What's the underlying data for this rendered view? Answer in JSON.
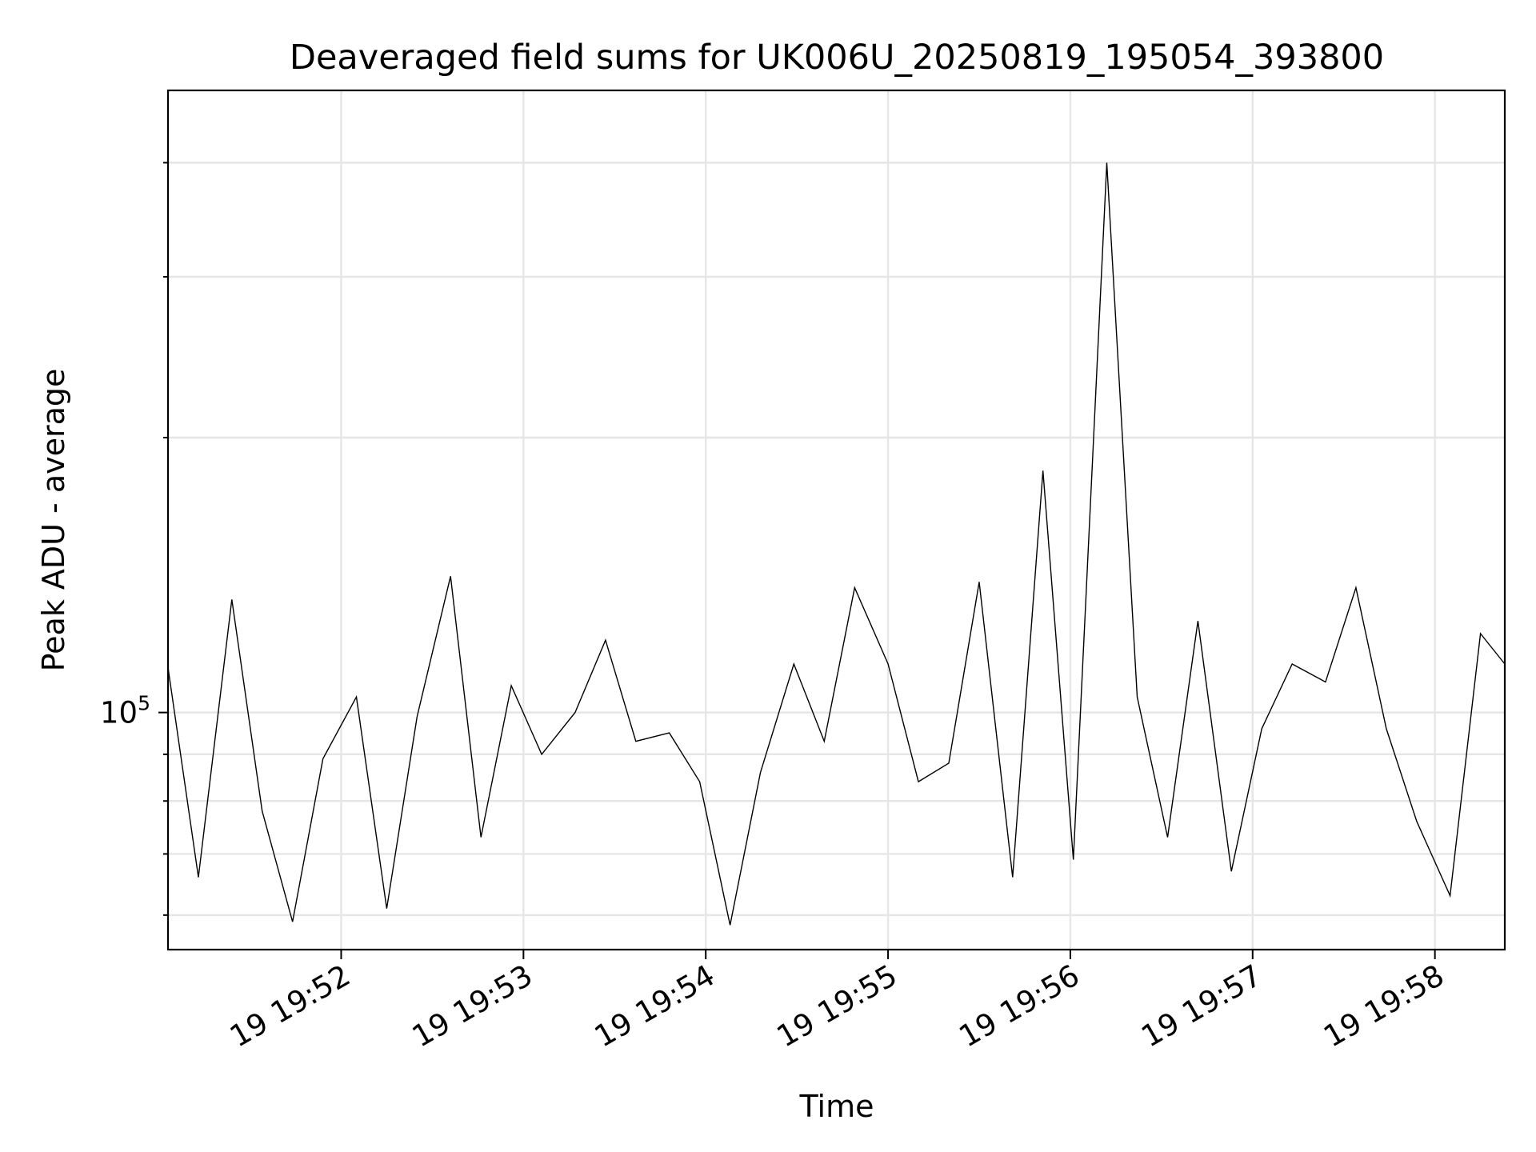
{
  "chart_data": {
    "type": "line",
    "title": "Deaveraged field sums for UK006U_20250819_195054_393800",
    "xlabel": "Time",
    "ylabel": "Peak ADU - average",
    "x_tick_labels": [
      "19 19:52",
      "19 19:53",
      "19 19:54",
      "19 19:55",
      "19 19:56",
      "19 19:57",
      "19 19:58"
    ],
    "x_tick_times": [
      "19:52:00",
      "19:53:00",
      "19:54:00",
      "19:55:00",
      "19:56:00",
      "19:57:00",
      "19:58:00"
    ],
    "y_major_tick_base": "10",
    "y_major_tick_exp": "5",
    "y_major_tick_value": 100000,
    "y_minor_tick_values": [
      60000,
      70000,
      80000,
      90000,
      200000,
      300000,
      400000
    ],
    "y_scale": "log",
    "xlim": [
      "19:51:03",
      "19:58:23"
    ],
    "ylim": [
      55000,
      480000
    ],
    "grid": true,
    "line_color": "#000000",
    "series": [
      {
        "x": [
          "19:51:03",
          "19:51:13",
          "19:51:24",
          "19:51:34",
          "19:51:44",
          "19:51:54",
          "19:52:05",
          "19:52:15",
          "19:52:25",
          "19:52:36",
          "19:52:46",
          "19:52:56",
          "19:53:06",
          "19:53:17",
          "19:53:27",
          "19:53:37",
          "19:53:48",
          "19:53:58",
          "19:54:08",
          "19:54:18",
          "19:54:29",
          "19:54:39",
          "19:54:49",
          "19:55:00",
          "19:55:10",
          "19:55:20",
          "19:55:30",
          "19:55:41",
          "19:55:51",
          "19:56:01",
          "19:56:12",
          "19:56:22",
          "19:56:32",
          "19:56:42",
          "19:56:53",
          "19:57:03",
          "19:57:13",
          "19:57:24",
          "19:57:34",
          "19:57:44",
          "19:57:54",
          "19:58:05",
          "19:58:15",
          "19:58:23"
        ],
        "values": [
          112000,
          66000,
          133000,
          78000,
          59000,
          89000,
          104000,
          61000,
          99000,
          141000,
          73000,
          107000,
          90000,
          100000,
          120000,
          93000,
          95000,
          84000,
          58500,
          86000,
          113000,
          93000,
          137000,
          113000,
          84000,
          88000,
          139000,
          66000,
          184000,
          69000,
          400000,
          104000,
          73000,
          126000,
          67000,
          96000,
          113000,
          108000,
          137000,
          96000,
          76000,
          63000,
          122000,
          113000
        ]
      }
    ]
  }
}
